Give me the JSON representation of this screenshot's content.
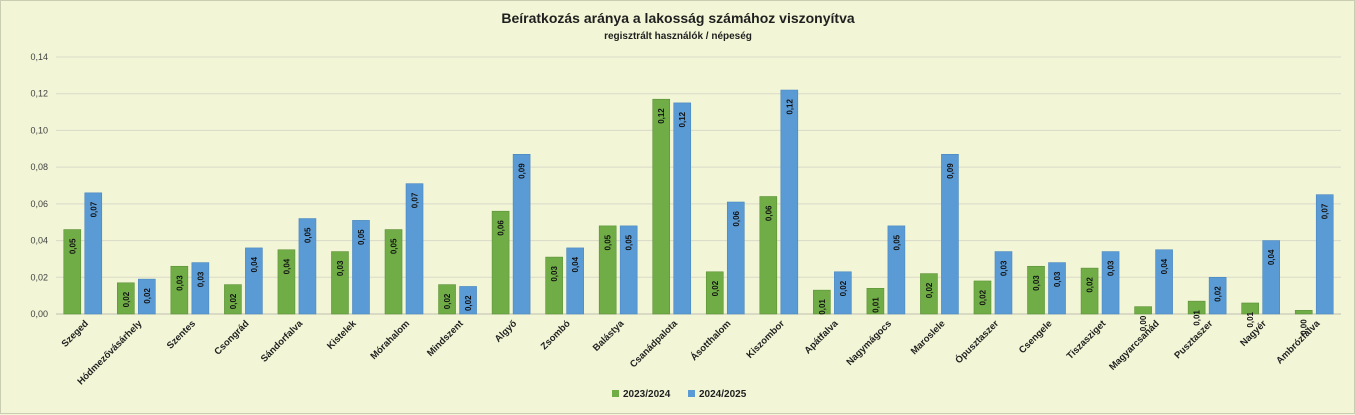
{
  "chart_data": {
    "type": "bar",
    "title": "Beíratkozás aránya a  lakosság számához viszonyítva",
    "subtitle": "regisztrált használók / népeség",
    "categories": [
      "Szeged",
      "Hódmezővásárhely",
      "Szentes",
      "Csongrád",
      "Sándorfalva",
      "Kistelek",
      "Mórahalom",
      "Mindszent",
      "Algyő",
      "Zsombó",
      "Balástya",
      "Csanádpalota",
      "Ásotthalom",
      "Kiszombor",
      "Apátfalva",
      "Nagymágocs",
      "Maroslele",
      "Ópusztaszer",
      "Csengele",
      "Tiszasziget",
      "Magyarcsanád",
      "Pusztaszer",
      "Nagyér",
      "Ambrózfalva"
    ],
    "series": [
      {
        "name": "2023/2024",
        "color": "#70ad47",
        "values": [
          0.046,
          0.017,
          0.026,
          0.016,
          0.035,
          0.034,
          0.046,
          0.016,
          0.056,
          0.031,
          0.048,
          0.117,
          0.023,
          0.064,
          0.013,
          0.014,
          0.022,
          0.018,
          0.026,
          0.025,
          0.004,
          0.007,
          0.006,
          0.002
        ],
        "labels": [
          "0,05",
          "0,02",
          "0,03",
          "0,02",
          "0,04",
          "0,03",
          "0,05",
          "0,02",
          "0,06",
          "0,03",
          "0,05",
          "0,12",
          "0,02",
          "0,06",
          "0,01",
          "0,01",
          "0,02",
          "0,02",
          "0,03",
          "0,02",
          "0,00",
          "0,01",
          "0,01",
          "0,00"
        ]
      },
      {
        "name": "2024/2025",
        "color": "#5b9bd5",
        "values": [
          0.066,
          0.019,
          0.028,
          0.036,
          0.052,
          0.051,
          0.071,
          0.015,
          0.087,
          0.036,
          0.048,
          0.115,
          0.061,
          0.122,
          0.023,
          0.048,
          0.087,
          0.034,
          0.028,
          0.034,
          0.035,
          0.02,
          0.04,
          0.065
        ],
        "labels": [
          "0,07",
          "0,02",
          "0,03",
          "0,04",
          "0,05",
          "0,05",
          "0,07",
          "0,02",
          "0,09",
          "0,04",
          "0,05",
          "0,12",
          "0,06",
          "0,12",
          "0,02",
          "0,05",
          "0,09",
          "0,03",
          "0,03",
          "0,03",
          "0,04",
          "0,02",
          "0,04",
          "0,07"
        ]
      }
    ],
    "yticks": [
      "0,00",
      "0,02",
      "0,04",
      "0,06",
      "0,08",
      "0,10",
      "0,12",
      "0,14"
    ],
    "ylim": [
      0,
      0.14
    ],
    "grid": true,
    "legend_position": "bottom"
  }
}
